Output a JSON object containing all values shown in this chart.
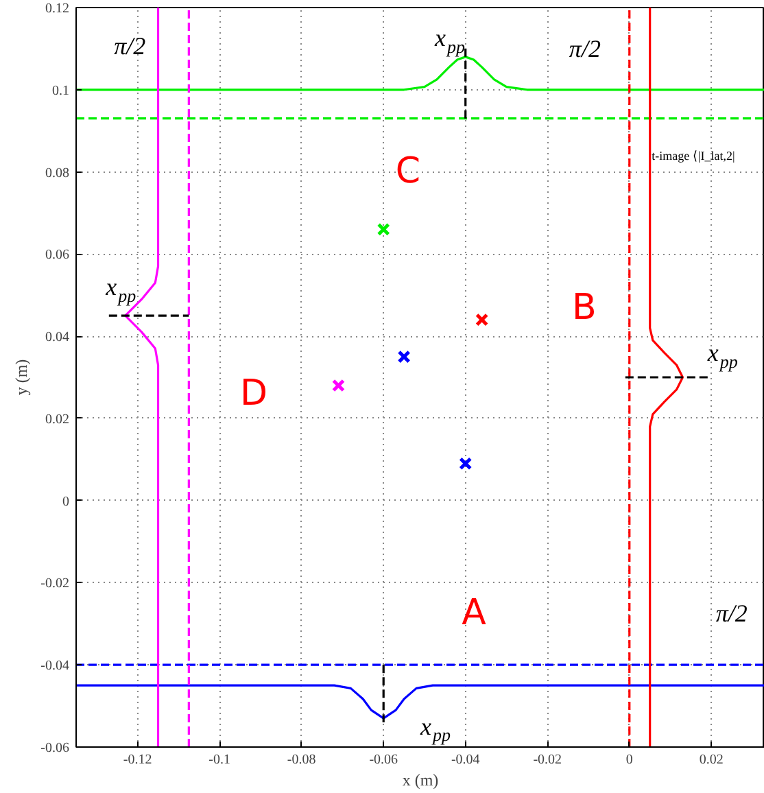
{
  "chart_data": {
    "type": "line",
    "xlabel": "x (m)",
    "ylabel": "y (m)",
    "xlim": [
      -0.135,
      0.033
    ],
    "ylim": [
      -0.06,
      0.12
    ],
    "xticks": [
      -0.12,
      -0.1,
      -0.08,
      -0.06,
      -0.04,
      -0.02,
      0,
      0.02
    ],
    "yticks": [
      -0.06,
      -0.04,
      -0.02,
      0,
      0.02,
      0.04,
      0.06,
      0.08,
      0.1,
      0.12
    ],
    "grid": true,
    "line_style": "solid",
    "series": [
      {
        "color": "#00ee00",
        "x": [
          -0.135,
          -0.055,
          -0.05,
          -0.047,
          -0.044,
          -0.042,
          -0.04,
          -0.038,
          -0.036,
          -0.033,
          -0.03,
          -0.025,
          0.033
        ],
        "values": [
          0.1,
          0.1,
          0.1007,
          0.1025,
          0.1055,
          0.1073,
          0.108,
          0.1073,
          0.1055,
          0.1025,
          0.1007,
          0.1,
          0.1
        ]
      },
      {
        "color": "#00ee00",
        "line_style": "dashed",
        "x": [
          -0.135,
          0.033
        ],
        "values": [
          0.093,
          0.093
        ]
      },
      {
        "color": "#0000ff",
        "x": [
          -0.135,
          -0.072,
          -0.068,
          -0.065,
          -0.063,
          -0.06,
          -0.057,
          -0.055,
          -0.052,
          -0.048,
          0.033
        ],
        "values": [
          -0.045,
          -0.045,
          -0.0457,
          -0.0483,
          -0.051,
          -0.053,
          -0.051,
          -0.0483,
          -0.0457,
          -0.045,
          -0.045
        ]
      },
      {
        "color": "#0000ff",
        "line_style": "dashed",
        "x": [
          -0.135,
          0.033
        ],
        "values": [
          -0.04,
          -0.04
        ]
      },
      {
        "color": "#ff0000",
        "x": [
          0.005,
          0.005,
          0.0057,
          0.0085,
          0.0115,
          0.013,
          0.0115,
          0.0085,
          0.0057,
          0.005,
          0.005
        ],
        "values": [
          -0.06,
          0.018,
          0.021,
          0.024,
          0.027,
          0.03,
          0.033,
          0.036,
          0.039,
          0.042,
          0.12
        ]
      },
      {
        "color": "#ff0000",
        "line_style": "dashed",
        "x": [
          0,
          0
        ],
        "values": [
          -0.06,
          0.12
        ]
      },
      {
        "color": "#ff00ff",
        "x": [
          -0.115,
          -0.115,
          -0.1157,
          -0.119,
          -0.123,
          -0.119,
          -0.1157,
          -0.115,
          -0.115
        ],
        "values": [
          -0.06,
          0.033,
          0.037,
          0.041,
          0.045,
          0.049,
          0.053,
          0.057,
          0.12
        ]
      },
      {
        "color": "#ff00ff",
        "line_style": "dashed",
        "x": [
          -0.1075,
          -0.1075
        ],
        "values": [
          -0.06,
          0.12
        ]
      },
      {
        "color": "#000000",
        "line_style": "dashed",
        "x": [
          -0.04,
          -0.04
        ],
        "values": [
          0.093,
          0.111
        ]
      },
      {
        "color": "#000000",
        "line_style": "dashed",
        "x": [
          -0.127,
          -0.1075
        ],
        "values": [
          0.045,
          0.045
        ]
      },
      {
        "color": "#000000",
        "line_style": "dashed",
        "x": [
          -0.001,
          0.02
        ],
        "values": [
          0.03,
          0.03
        ]
      },
      {
        "color": "#000000",
        "line_style": "dashed",
        "x": [
          -0.06,
          -0.06
        ],
        "values": [
          -0.04,
          -0.054
        ]
      },
      {
        "type": "scatter",
        "marker": "cross",
        "x": [
          -0.06,
          -0.036,
          -0.071,
          -0.04
        ],
        "values": [
          0.066,
          0.044,
          0.028,
          0.009
        ],
        "colors": [
          "#00ee00",
          "#ff0000",
          "#ff00ff",
          "#0000ff"
        ]
      },
      {
        "type": "scatter",
        "marker": "cross",
        "color": "#0000ff",
        "x": [
          -0.055
        ],
        "values": [
          0.035
        ]
      }
    ],
    "annotations": [
      "π/2",
      "π/2",
      "π/2",
      "x$_{pp}$",
      "x$_{pp}$",
      "x$_{pp}$",
      "x$_{pp}$",
      "A",
      "B",
      "C",
      "D",
      "t-image ⟨|I_lat,2|"
    ]
  }
}
